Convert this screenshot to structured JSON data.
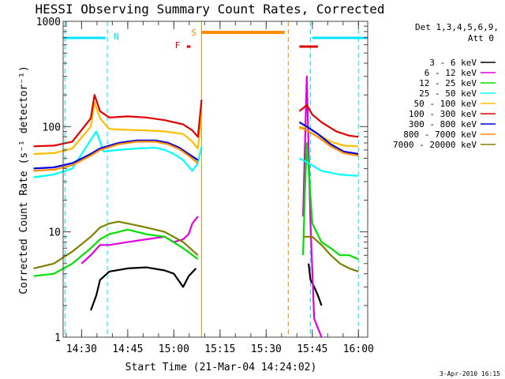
{
  "chart_data": {
    "type": "line",
    "title": "HESSI Observing Summary Count Rates, Corrected",
    "xlabel": "Start Time (21-Mar-04 14:24:02)",
    "ylabel": "Corrected Count Rate (s⁻¹ detector⁻¹)",
    "y_scale": "log",
    "ylim": [
      1,
      1000
    ],
    "xlim": [
      "14:24",
      "16:03"
    ],
    "x_ticks": [
      "14:30",
      "14:45",
      "15:00",
      "15:15",
      "15:30",
      "15:45",
      "16:00"
    ],
    "y_ticks": [
      "1",
      "10",
      "100",
      "1000"
    ],
    "legend_header": [
      "Det 1,3,4,5,6,9,",
      "Att 0"
    ],
    "legend_placement": "right",
    "footer": "3-Apr-2010 16:15",
    "grid": false,
    "annotations": [
      {
        "text": "N",
        "color": "#00e5ff"
      },
      {
        "text": "S",
        "color": "#ff8c00"
      },
      {
        "text": "F",
        "color": "#e00000"
      }
    ],
    "series": [
      {
        "name": "3 - 6 keV",
        "color": "#000000",
        "points": [
          [
            14.55,
            1.8
          ],
          [
            14.58,
            2.5
          ],
          [
            14.6,
            3.5
          ],
          [
            14.65,
            4.2
          ],
          [
            14.75,
            4.5
          ],
          [
            14.85,
            4.6
          ],
          [
            14.95,
            4.3
          ],
          [
            15.0,
            4.0
          ],
          [
            15.05,
            3.0
          ],
          [
            15.08,
            3.8
          ],
          [
            15.12,
            4.5
          ],
          null,
          [
            15.73,
            5
          ],
          [
            15.74,
            3.5
          ],
          [
            15.76,
            3.0
          ],
          [
            15.78,
            2.5
          ],
          [
            15.8,
            2.0
          ]
        ]
      },
      {
        "name": "6 - 12 keV",
        "color": "#e000e0",
        "points": [
          [
            14.5,
            5.0
          ],
          [
            14.55,
            6.0
          ],
          [
            14.6,
            7.5
          ],
          [
            14.65,
            7.5
          ],
          [
            14.75,
            8.0
          ],
          [
            14.85,
            8.5
          ],
          [
            14.95,
            9
          ],
          [
            15.0,
            8.0
          ],
          [
            15.05,
            8.5
          ],
          [
            15.08,
            9.5
          ],
          [
            15.1,
            12
          ],
          [
            15.13,
            14
          ],
          null,
          [
            15.7,
            14
          ],
          [
            15.72,
            300
          ],
          [
            15.73,
            60
          ],
          [
            15.74,
            12
          ],
          [
            15.76,
            1.5
          ],
          [
            15.8,
            1.0
          ]
        ]
      },
      {
        "name": "12 - 25 keV",
        "color": "#00e000",
        "points": [
          [
            14.24,
            3.8
          ],
          [
            14.35,
            4.0
          ],
          [
            14.45,
            5.0
          ],
          [
            14.55,
            7.0
          ],
          [
            14.6,
            8.5
          ],
          [
            14.65,
            9.5
          ],
          [
            14.7,
            10
          ],
          [
            14.75,
            10.5
          ],
          [
            14.8,
            10
          ],
          [
            14.85,
            9.5
          ],
          [
            14.95,
            9
          ],
          [
            15.05,
            7
          ],
          [
            15.13,
            5.5
          ],
          null,
          [
            15.7,
            6
          ],
          [
            15.71,
            25
          ],
          [
            15.72,
            70
          ],
          [
            15.73,
            40
          ],
          [
            15.75,
            12
          ],
          [
            15.8,
            8
          ],
          [
            15.85,
            7
          ],
          [
            15.9,
            6
          ],
          [
            15.95,
            6
          ],
          [
            16.0,
            5.5
          ]
        ]
      },
      {
        "name": "25 - 50 keV",
        "color": "#00ffff",
        "points": [
          [
            14.24,
            33
          ],
          [
            14.35,
            35
          ],
          [
            14.45,
            40
          ],
          [
            14.58,
            90
          ],
          [
            14.62,
            58
          ],
          [
            14.7,
            60
          ],
          [
            14.8,
            62
          ],
          [
            14.9,
            63
          ],
          [
            14.95,
            60
          ],
          [
            15.0,
            55
          ],
          [
            15.05,
            48
          ],
          [
            15.1,
            38
          ],
          [
            15.13,
            45
          ],
          [
            15.15,
            65
          ],
          null,
          [
            15.68,
            50
          ],
          [
            15.72,
            46
          ],
          [
            15.8,
            38
          ],
          [
            15.9,
            35
          ],
          [
            16.0,
            34
          ]
        ]
      },
      {
        "name": "50 - 100 keV",
        "color": "#ffbf00",
        "points": [
          [
            14.24,
            55
          ],
          [
            14.35,
            56
          ],
          [
            14.45,
            62
          ],
          [
            14.55,
            100
          ],
          [
            14.57,
            170
          ],
          [
            14.6,
            120
          ],
          [
            14.65,
            95
          ],
          [
            14.75,
            93
          ],
          [
            14.85,
            92
          ],
          [
            14.95,
            90
          ],
          [
            15.05,
            85
          ],
          [
            15.1,
            72
          ],
          [
            15.13,
            62
          ],
          [
            15.15,
            130
          ],
          null,
          [
            15.68,
            95
          ],
          [
            15.72,
            100
          ],
          [
            15.78,
            85
          ],
          [
            15.85,
            72
          ],
          [
            15.92,
            66
          ],
          [
            16.0,
            65
          ]
        ]
      },
      {
        "name": "100 - 300 keV",
        "color": "#e00000",
        "points": [
          [
            14.24,
            65
          ],
          [
            14.35,
            66
          ],
          [
            14.45,
            72
          ],
          [
            14.55,
            120
          ],
          [
            14.57,
            200
          ],
          [
            14.6,
            140
          ],
          [
            14.65,
            122
          ],
          [
            14.75,
            125
          ],
          [
            14.85,
            122
          ],
          [
            14.95,
            115
          ],
          [
            15.05,
            105
          ],
          [
            15.1,
            92
          ],
          [
            15.13,
            80
          ],
          [
            15.15,
            180
          ],
          null,
          [
            15.68,
            140
          ],
          [
            15.72,
            160
          ],
          [
            15.75,
            130
          ],
          [
            15.8,
            110
          ],
          [
            15.88,
            90
          ],
          [
            15.95,
            82
          ],
          [
            16.0,
            80
          ]
        ]
      },
      {
        "name": "300 - 800 keV",
        "color": "#0000e0",
        "points": [
          [
            14.24,
            40
          ],
          [
            14.35,
            41
          ],
          [
            14.45,
            45
          ],
          [
            14.55,
            55
          ],
          [
            14.6,
            62
          ],
          [
            14.7,
            70
          ],
          [
            14.8,
            74
          ],
          [
            14.9,
            74
          ],
          [
            14.97,
            70
          ],
          [
            15.03,
            63
          ],
          [
            15.08,
            55
          ],
          [
            15.13,
            48
          ],
          null,
          [
            15.68,
            110
          ],
          [
            15.72,
            100
          ],
          [
            15.78,
            85
          ],
          [
            15.85,
            68
          ],
          [
            15.92,
            58
          ],
          [
            16.0,
            55
          ]
        ]
      },
      {
        "name": "800 - 7000 keV",
        "color": "#ff8c00",
        "points": [
          [
            14.24,
            38
          ],
          [
            14.35,
            39
          ],
          [
            14.45,
            43
          ],
          [
            14.55,
            53
          ],
          [
            14.6,
            60
          ],
          [
            14.7,
            68
          ],
          [
            14.8,
            72
          ],
          [
            14.9,
            72
          ],
          [
            14.97,
            68
          ],
          [
            15.03,
            61
          ],
          [
            15.08,
            53
          ],
          [
            15.13,
            45
          ],
          null,
          [
            15.68,
            100
          ],
          [
            15.72,
            92
          ],
          [
            15.78,
            80
          ],
          [
            15.85,
            65
          ],
          [
            15.92,
            56
          ],
          [
            16.0,
            53
          ]
        ]
      },
      {
        "name": "7000 - 20000 keV",
        "color": "#808000",
        "points": [
          [
            14.24,
            4.5
          ],
          [
            14.35,
            5.0
          ],
          [
            14.45,
            6.5
          ],
          [
            14.55,
            9
          ],
          [
            14.6,
            11
          ],
          [
            14.65,
            12
          ],
          [
            14.7,
            12.5
          ],
          [
            14.75,
            12
          ],
          [
            14.85,
            11
          ],
          [
            14.95,
            10
          ],
          [
            15.05,
            8
          ],
          [
            15.13,
            6
          ],
          null,
          [
            15.7,
            9
          ],
          [
            15.75,
            9
          ],
          [
            15.8,
            7.5
          ],
          [
            15.85,
            6
          ],
          [
            15.9,
            5
          ],
          [
            15.95,
            4.5
          ],
          [
            16.0,
            4.2
          ]
        ]
      }
    ]
  }
}
